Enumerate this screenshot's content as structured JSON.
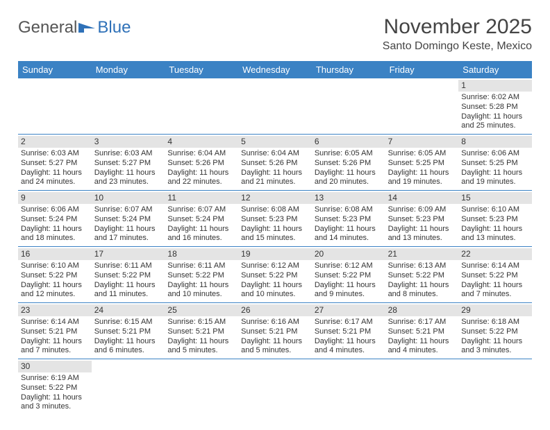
{
  "logo": {
    "text_a": "General",
    "text_b": "Blue"
  },
  "title": "November 2025",
  "location": "Santo Domingo Keste, Mexico",
  "colors": {
    "header_bg": "#3b82c4",
    "header_text": "#ffffff",
    "daynum_bg": "#e4e4e4",
    "divider": "#3b82c4",
    "text": "#333333"
  },
  "fonts": {
    "title_size_pt": 22,
    "location_size_pt": 12,
    "header_size_pt": 10,
    "body_size_pt": 8
  },
  "day_names": [
    "Sunday",
    "Monday",
    "Tuesday",
    "Wednesday",
    "Thursday",
    "Friday",
    "Saturday"
  ],
  "weeks": [
    [
      null,
      null,
      null,
      null,
      null,
      null,
      {
        "n": "1",
        "sunrise": "Sunrise: 6:02 AM",
        "sunset": "Sunset: 5:28 PM",
        "daylight1": "Daylight: 11 hours",
        "daylight2": "and 25 minutes."
      }
    ],
    [
      {
        "n": "2",
        "sunrise": "Sunrise: 6:03 AM",
        "sunset": "Sunset: 5:27 PM",
        "daylight1": "Daylight: 11 hours",
        "daylight2": "and 24 minutes."
      },
      {
        "n": "3",
        "sunrise": "Sunrise: 6:03 AM",
        "sunset": "Sunset: 5:27 PM",
        "daylight1": "Daylight: 11 hours",
        "daylight2": "and 23 minutes."
      },
      {
        "n": "4",
        "sunrise": "Sunrise: 6:04 AM",
        "sunset": "Sunset: 5:26 PM",
        "daylight1": "Daylight: 11 hours",
        "daylight2": "and 22 minutes."
      },
      {
        "n": "5",
        "sunrise": "Sunrise: 6:04 AM",
        "sunset": "Sunset: 5:26 PM",
        "daylight1": "Daylight: 11 hours",
        "daylight2": "and 21 minutes."
      },
      {
        "n": "6",
        "sunrise": "Sunrise: 6:05 AM",
        "sunset": "Sunset: 5:26 PM",
        "daylight1": "Daylight: 11 hours",
        "daylight2": "and 20 minutes."
      },
      {
        "n": "7",
        "sunrise": "Sunrise: 6:05 AM",
        "sunset": "Sunset: 5:25 PM",
        "daylight1": "Daylight: 11 hours",
        "daylight2": "and 19 minutes."
      },
      {
        "n": "8",
        "sunrise": "Sunrise: 6:06 AM",
        "sunset": "Sunset: 5:25 PM",
        "daylight1": "Daylight: 11 hours",
        "daylight2": "and 19 minutes."
      }
    ],
    [
      {
        "n": "9",
        "sunrise": "Sunrise: 6:06 AM",
        "sunset": "Sunset: 5:24 PM",
        "daylight1": "Daylight: 11 hours",
        "daylight2": "and 18 minutes."
      },
      {
        "n": "10",
        "sunrise": "Sunrise: 6:07 AM",
        "sunset": "Sunset: 5:24 PM",
        "daylight1": "Daylight: 11 hours",
        "daylight2": "and 17 minutes."
      },
      {
        "n": "11",
        "sunrise": "Sunrise: 6:07 AM",
        "sunset": "Sunset: 5:24 PM",
        "daylight1": "Daylight: 11 hours",
        "daylight2": "and 16 minutes."
      },
      {
        "n": "12",
        "sunrise": "Sunrise: 6:08 AM",
        "sunset": "Sunset: 5:23 PM",
        "daylight1": "Daylight: 11 hours",
        "daylight2": "and 15 minutes."
      },
      {
        "n": "13",
        "sunrise": "Sunrise: 6:08 AM",
        "sunset": "Sunset: 5:23 PM",
        "daylight1": "Daylight: 11 hours",
        "daylight2": "and 14 minutes."
      },
      {
        "n": "14",
        "sunrise": "Sunrise: 6:09 AM",
        "sunset": "Sunset: 5:23 PM",
        "daylight1": "Daylight: 11 hours",
        "daylight2": "and 13 minutes."
      },
      {
        "n": "15",
        "sunrise": "Sunrise: 6:10 AM",
        "sunset": "Sunset: 5:23 PM",
        "daylight1": "Daylight: 11 hours",
        "daylight2": "and 13 minutes."
      }
    ],
    [
      {
        "n": "16",
        "sunrise": "Sunrise: 6:10 AM",
        "sunset": "Sunset: 5:22 PM",
        "daylight1": "Daylight: 11 hours",
        "daylight2": "and 12 minutes."
      },
      {
        "n": "17",
        "sunrise": "Sunrise: 6:11 AM",
        "sunset": "Sunset: 5:22 PM",
        "daylight1": "Daylight: 11 hours",
        "daylight2": "and 11 minutes."
      },
      {
        "n": "18",
        "sunrise": "Sunrise: 6:11 AM",
        "sunset": "Sunset: 5:22 PM",
        "daylight1": "Daylight: 11 hours",
        "daylight2": "and 10 minutes."
      },
      {
        "n": "19",
        "sunrise": "Sunrise: 6:12 AM",
        "sunset": "Sunset: 5:22 PM",
        "daylight1": "Daylight: 11 hours",
        "daylight2": "and 10 minutes."
      },
      {
        "n": "20",
        "sunrise": "Sunrise: 6:12 AM",
        "sunset": "Sunset: 5:22 PM",
        "daylight1": "Daylight: 11 hours",
        "daylight2": "and 9 minutes."
      },
      {
        "n": "21",
        "sunrise": "Sunrise: 6:13 AM",
        "sunset": "Sunset: 5:22 PM",
        "daylight1": "Daylight: 11 hours",
        "daylight2": "and 8 minutes."
      },
      {
        "n": "22",
        "sunrise": "Sunrise: 6:14 AM",
        "sunset": "Sunset: 5:22 PM",
        "daylight1": "Daylight: 11 hours",
        "daylight2": "and 7 minutes."
      }
    ],
    [
      {
        "n": "23",
        "sunrise": "Sunrise: 6:14 AM",
        "sunset": "Sunset: 5:21 PM",
        "daylight1": "Daylight: 11 hours",
        "daylight2": "and 7 minutes."
      },
      {
        "n": "24",
        "sunrise": "Sunrise: 6:15 AM",
        "sunset": "Sunset: 5:21 PM",
        "daylight1": "Daylight: 11 hours",
        "daylight2": "and 6 minutes."
      },
      {
        "n": "25",
        "sunrise": "Sunrise: 6:15 AM",
        "sunset": "Sunset: 5:21 PM",
        "daylight1": "Daylight: 11 hours",
        "daylight2": "and 5 minutes."
      },
      {
        "n": "26",
        "sunrise": "Sunrise: 6:16 AM",
        "sunset": "Sunset: 5:21 PM",
        "daylight1": "Daylight: 11 hours",
        "daylight2": "and 5 minutes."
      },
      {
        "n": "27",
        "sunrise": "Sunrise: 6:17 AM",
        "sunset": "Sunset: 5:21 PM",
        "daylight1": "Daylight: 11 hours",
        "daylight2": "and 4 minutes."
      },
      {
        "n": "28",
        "sunrise": "Sunrise: 6:17 AM",
        "sunset": "Sunset: 5:21 PM",
        "daylight1": "Daylight: 11 hours",
        "daylight2": "and 4 minutes."
      },
      {
        "n": "29",
        "sunrise": "Sunrise: 6:18 AM",
        "sunset": "Sunset: 5:22 PM",
        "daylight1": "Daylight: 11 hours",
        "daylight2": "and 3 minutes."
      }
    ],
    [
      {
        "n": "30",
        "sunrise": "Sunrise: 6:19 AM",
        "sunset": "Sunset: 5:22 PM",
        "daylight1": "Daylight: 11 hours",
        "daylight2": "and 3 minutes."
      },
      null,
      null,
      null,
      null,
      null,
      null
    ]
  ]
}
